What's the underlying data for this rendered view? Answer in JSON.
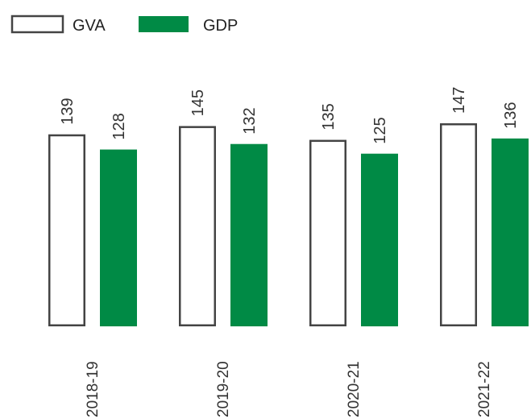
{
  "chart_data": {
    "type": "bar",
    "title": "",
    "xlabel": "",
    "ylabel": "",
    "categories": [
      "2018-19",
      "2019-20",
      "2020-21",
      "2021-22"
    ],
    "series": [
      {
        "name": "GVA",
        "values": [
          139,
          145,
          135,
          147
        ],
        "color": "#ffffff",
        "stroke": "#444444"
      },
      {
        "name": "GDP",
        "values": [
          128,
          132,
          125,
          136
        ],
        "color": "#008a45",
        "stroke": "none"
      }
    ],
    "ylim": [
      0,
      147
    ],
    "grid": false,
    "legend": "top-left",
    "data_labels": true
  }
}
